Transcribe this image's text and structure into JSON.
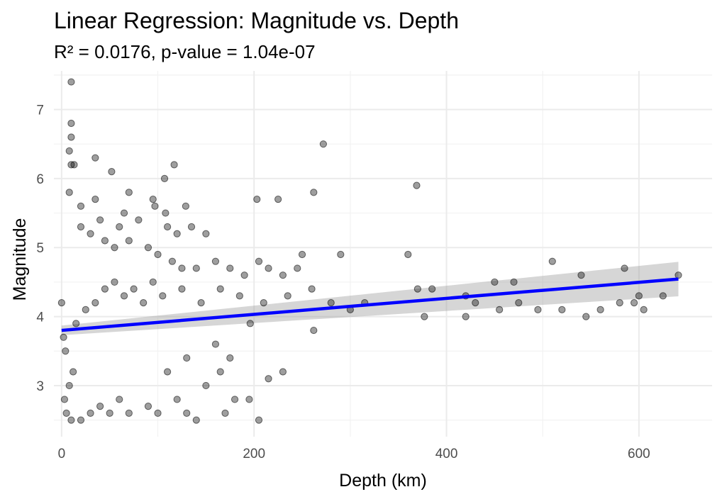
{
  "chart_data": {
    "type": "scatter",
    "title": "Linear Regression: Magnitude vs. Depth",
    "subtitle": "R² = 0.0176, p-value = 1.04e-07",
    "xlabel": "Depth (km)",
    "ylabel": "Magnitude",
    "xlim": [
      -8,
      676
    ],
    "ylim": [
      2.26,
      7.56
    ],
    "x_ticks": [
      0,
      200,
      400,
      600
    ],
    "y_ticks": [
      3,
      4,
      5,
      6,
      7
    ],
    "x_tick_labels": [
      "0",
      "200",
      "400",
      "600"
    ],
    "y_tick_labels": [
      "3",
      "4",
      "5",
      "6",
      "7"
    ],
    "grid": true,
    "legend": "none",
    "colors": {
      "points": "#000000",
      "fit_line": "#0000ff",
      "confidence_band": "#999999"
    },
    "fit": {
      "intercept": 3.8,
      "slope": 0.00116,
      "x_range": [
        0,
        641
      ],
      "ci_at_x0": 0.07,
      "ci_at_xmax": 0.25
    },
    "points_visible": [
      [
        10,
        7.4
      ],
      [
        10,
        6.8
      ],
      [
        10,
        6.6
      ],
      [
        8,
        6.4
      ],
      [
        10,
        6.2
      ],
      [
        13,
        6.2
      ],
      [
        35,
        6.3
      ],
      [
        52,
        6.1
      ],
      [
        107,
        6.0
      ],
      [
        117,
        6.2
      ],
      [
        70,
        5.8
      ],
      [
        8,
        5.8
      ],
      [
        20,
        5.6
      ],
      [
        35,
        5.7
      ],
      [
        95,
        5.7
      ],
      [
        97,
        5.6
      ],
      [
        129,
        5.6
      ],
      [
        108,
        5.5
      ],
      [
        65,
        5.5
      ],
      [
        262,
        5.8
      ],
      [
        272,
        6.5
      ],
      [
        369,
        5.9
      ],
      [
        203,
        5.7
      ],
      [
        225,
        5.7
      ],
      [
        40,
        5.4
      ],
      [
        60,
        5.3
      ],
      [
        80,
        5.4
      ],
      [
        110,
        5.3
      ],
      [
        120,
        5.2
      ],
      [
        135,
        5.3
      ],
      [
        150,
        5.2
      ],
      [
        20,
        5.3
      ],
      [
        30,
        5.2
      ],
      [
        45,
        5.1
      ],
      [
        55,
        5.0
      ],
      [
        70,
        5.1
      ],
      [
        90,
        5.0
      ],
      [
        100,
        4.9
      ],
      [
        115,
        4.8
      ],
      [
        125,
        4.7
      ],
      [
        140,
        4.7
      ],
      [
        160,
        4.8
      ],
      [
        175,
        4.7
      ],
      [
        190,
        4.6
      ],
      [
        205,
        4.8
      ],
      [
        215,
        4.7
      ],
      [
        230,
        4.6
      ],
      [
        245,
        4.7
      ],
      [
        250,
        4.9
      ],
      [
        290,
        4.9
      ],
      [
        360,
        4.9
      ],
      [
        370,
        4.4
      ],
      [
        385,
        4.4
      ],
      [
        420,
        4.3
      ],
      [
        450,
        4.5
      ],
      [
        470,
        4.5
      ],
      [
        510,
        4.8
      ],
      [
        540,
        4.6
      ],
      [
        585,
        4.7
      ],
      [
        600,
        4.3
      ],
      [
        625,
        4.3
      ],
      [
        641,
        4.6
      ],
      [
        377,
        4.0
      ],
      [
        420,
        4.0
      ],
      [
        430,
        4.2
      ],
      [
        455,
        4.1
      ],
      [
        475,
        4.2
      ],
      [
        495,
        4.1
      ],
      [
        520,
        4.1
      ],
      [
        545,
        4.0
      ],
      [
        560,
        4.1
      ],
      [
        580,
        4.2
      ],
      [
        595,
        4.2
      ],
      [
        605,
        4.1
      ],
      [
        262,
        3.8
      ],
      [
        196,
        3.9
      ],
      [
        160,
        3.6
      ],
      [
        175,
        3.4
      ],
      [
        130,
        3.4
      ],
      [
        110,
        3.2
      ],
      [
        165,
        3.2
      ],
      [
        215,
        3.1
      ],
      [
        230,
        3.2
      ],
      [
        150,
        3.0
      ],
      [
        180,
        2.8
      ],
      [
        195,
        2.8
      ],
      [
        205,
        2.5
      ],
      [
        170,
        2.6
      ],
      [
        140,
        2.5
      ],
      [
        130,
        2.6
      ],
      [
        120,
        2.8
      ],
      [
        100,
        2.6
      ],
      [
        90,
        2.7
      ],
      [
        70,
        2.6
      ],
      [
        60,
        2.8
      ],
      [
        50,
        2.6
      ],
      [
        40,
        2.7
      ],
      [
        30,
        2.6
      ],
      [
        20,
        2.5
      ],
      [
        10,
        2.5
      ],
      [
        5,
        2.6
      ],
      [
        3,
        2.8
      ],
      [
        8,
        3.0
      ],
      [
        12,
        3.2
      ],
      [
        4,
        3.5
      ],
      [
        0,
        4.2
      ],
      [
        2,
        3.7
      ],
      [
        15,
        3.9
      ],
      [
        25,
        4.1
      ],
      [
        35,
        4.2
      ],
      [
        45,
        4.4
      ],
      [
        55,
        4.5
      ],
      [
        65,
        4.3
      ],
      [
        75,
        4.4
      ],
      [
        85,
        4.2
      ],
      [
        95,
        4.5
      ],
      [
        105,
        4.3
      ],
      [
        125,
        4.4
      ],
      [
        145,
        4.2
      ],
      [
        165,
        4.4
      ],
      [
        185,
        4.3
      ],
      [
        210,
        4.2
      ],
      [
        235,
        4.3
      ],
      [
        260,
        4.4
      ],
      [
        280,
        4.2
      ],
      [
        300,
        4.1
      ],
      [
        315,
        4.2
      ]
    ]
  }
}
